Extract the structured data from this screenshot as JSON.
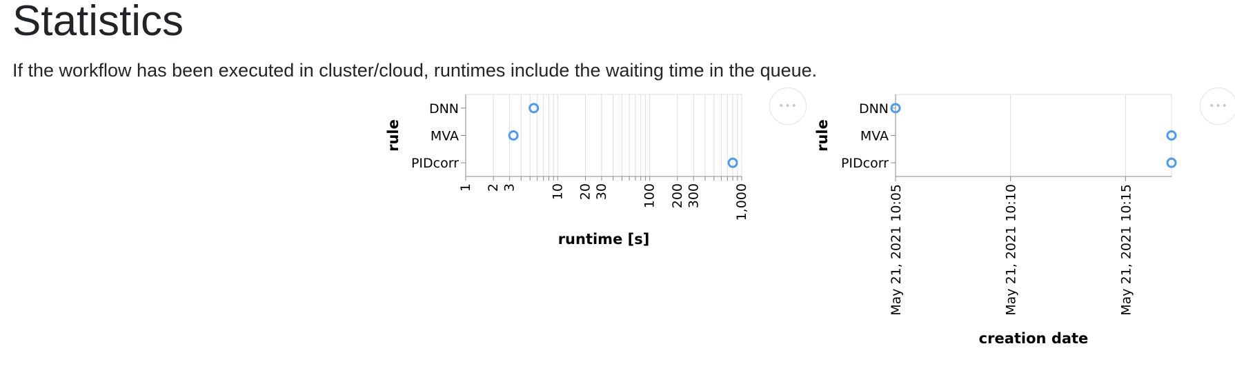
{
  "page": {
    "title": "Statistics",
    "intro": "If the workflow has been executed in cluster/cloud, runtimes include the waiting time in the queue."
  },
  "actions_icon": "more-horizontal-icon",
  "actions_glyph": "•••",
  "colors": {
    "point": "#4c9bf5",
    "grid": "#dddddd",
    "axis": "#888888",
    "text": "#000000"
  },
  "chart_data": [
    {
      "type": "scatter",
      "title": "",
      "xlabel": "runtime [s]",
      "ylabel": "rule",
      "xscale": "log",
      "xlim": [
        1,
        1000
      ],
      "categories": [
        "DNN",
        "MVA",
        "PIDcorr"
      ],
      "x_tick_labels": [
        "1",
        "2",
        "3",
        "10",
        "20",
        "30",
        "100",
        "200",
        "300",
        "1,000"
      ],
      "x_tick_values": [
        1,
        2,
        3,
        10,
        20,
        30,
        100,
        200,
        300,
        1000
      ],
      "grid": true,
      "points": [
        {
          "rule": "DNN",
          "runtime": 5.5
        },
        {
          "rule": "MVA",
          "runtime": 3.3
        },
        {
          "rule": "PIDcorr",
          "runtime": 800
        }
      ]
    },
    {
      "type": "scatter",
      "title": "",
      "xlabel": "creation date",
      "ylabel": "rule",
      "xscale": "time",
      "xlim": [
        "2021-05-21T10:05",
        "2021-05-21T10:17"
      ],
      "categories": [
        "DNN",
        "MVA",
        "PIDcorr"
      ],
      "x_tick_labels": [
        "May 21, 2021 10:05",
        "May 21, 2021 10:10",
        "May 21, 2021 10:15"
      ],
      "x_tick_values": [
        "2021-05-21T10:05",
        "2021-05-21T10:10",
        "2021-05-21T10:15"
      ],
      "grid": true,
      "points": [
        {
          "rule": "DNN",
          "date": "2021-05-21T10:05"
        },
        {
          "rule": "MVA",
          "date": "2021-05-21T10:17"
        },
        {
          "rule": "PIDcorr",
          "date": "2021-05-21T10:17"
        }
      ]
    }
  ]
}
